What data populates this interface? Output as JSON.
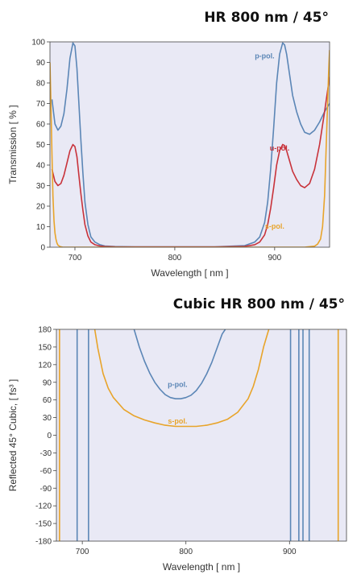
{
  "chart_data": [
    {
      "type": "line",
      "title": "HR 800 nm / 45°",
      "xlabel": "Wavelength [ nm ]",
      "ylabel": "Transmission [ % ]",
      "xlim": [
        675,
        955
      ],
      "ylim": [
        0,
        100
      ],
      "xticks": [
        "700",
        "800",
        "900"
      ],
      "yticks": [
        "0",
        "10",
        "20",
        "30",
        "40",
        "50",
        "60",
        "70",
        "80",
        "90",
        "100"
      ],
      "grid": false,
      "background": "#e9e9f5",
      "series": [
        {
          "name": "p-pol.",
          "color": "#5b86b6",
          "x": [
            677,
            680,
            683,
            686,
            689,
            692,
            695,
            698,
            700,
            702,
            704,
            706,
            708,
            710,
            713,
            716,
            720,
            725,
            730,
            740,
            760,
            800,
            840,
            870,
            880,
            885,
            890,
            893,
            896,
            899,
            902,
            905,
            908,
            910,
            912,
            915,
            918,
            922,
            926,
            930,
            935,
            940,
            945,
            950,
            955
          ],
          "values": [
            72,
            60,
            57,
            59,
            65,
            77,
            92,
            99.5,
            98,
            87,
            70,
            52,
            36,
            22,
            11,
            5,
            2.5,
            1.2,
            0.6,
            0.3,
            0.2,
            0.2,
            0.2,
            0.8,
            2.5,
            5,
            12,
            22,
            38,
            58,
            80,
            94,
            99.5,
            98.5,
            94,
            84,
            74,
            66,
            60,
            56,
            55,
            57,
            61,
            66,
            70
          ]
        },
        {
          "name": "u-pol.",
          "color": "#c8323a",
          "x": [
            677,
            680,
            683,
            686,
            689,
            692,
            695,
            698,
            700,
            702,
            704,
            706,
            708,
            710,
            713,
            716,
            720,
            725,
            730,
            740,
            760,
            800,
            840,
            870,
            880,
            885,
            890,
            893,
            896,
            899,
            902,
            905,
            908,
            910,
            912,
            915,
            918,
            922,
            926,
            930,
            935,
            940,
            945,
            950,
            955
          ],
          "values": [
            38,
            32,
            30,
            31,
            35,
            41,
            47,
            50,
            49,
            44,
            35,
            26,
            18,
            11,
            5.5,
            2.5,
            1.2,
            0.6,
            0.3,
            0.15,
            0.1,
            0.1,
            0.1,
            0.4,
            1.2,
            2.5,
            6,
            11,
            19,
            29,
            40,
            47,
            50,
            49.5,
            47,
            42,
            37,
            33,
            30,
            29,
            31,
            38,
            50,
            66,
            83
          ]
        },
        {
          "name": "s-pol.",
          "color": "#e8a42a",
          "x": [
            675,
            676,
            677,
            678,
            679,
            680,
            681,
            682,
            683,
            685,
            688,
            700,
            800,
            900,
            930,
            940,
            943,
            946,
            948,
            950,
            952,
            954,
            955
          ],
          "values": [
            90,
            70,
            45,
            25,
            13,
            7,
            4,
            2,
            1,
            0.3,
            0,
            0,
            0,
            0,
            0,
            0.5,
            1.5,
            4,
            10,
            25,
            55,
            85,
            96
          ]
        }
      ]
    },
    {
      "type": "line",
      "title": "Cubic HR 800 nm / 45°",
      "xlabel": "Wavelength [ nm ]",
      "ylabel": "Reflected 45° Cubic, [ fs³ ]",
      "xlim": [
        675,
        955
      ],
      "ylim": [
        -180,
        180
      ],
      "xticks": [
        "700",
        "800",
        "900"
      ],
      "yticks": [
        "-180",
        "-150",
        "-120",
        "-90",
        "-60",
        "-30",
        "0",
        "30",
        "60",
        "90",
        "120",
        "150",
        "180"
      ],
      "grid": false,
      "background": "#e9e9f5",
      "series": [
        {
          "name": "p-pol.",
          "color": "#5b86b6",
          "x": [
            750,
            755,
            760,
            765,
            770,
            775,
            780,
            785,
            790,
            795,
            800,
            805,
            810,
            815,
            820,
            825,
            830,
            835,
            838
          ],
          "values": [
            180,
            150,
            126,
            106,
            90,
            78,
            69,
            64,
            62,
            62,
            64,
            68,
            76,
            88,
            104,
            124,
            148,
            172,
            180
          ]
        },
        {
          "name": "s-pol.",
          "color": "#e8a42a",
          "x": [
            712,
            715,
            720,
            725,
            730,
            740,
            750,
            760,
            770,
            780,
            790,
            800,
            810,
            820,
            830,
            840,
            850,
            860,
            865,
            870,
            875,
            880
          ],
          "values": [
            180,
            148,
            105,
            80,
            64,
            44,
            33,
            26,
            21,
            17,
            15,
            15,
            15,
            17,
            21,
            27,
            39,
            62,
            83,
            112,
            150,
            180
          ]
        }
      ],
      "vertical_lines": [
        {
          "color": "#5b86b6",
          "x": [
            695,
            706,
            901,
            909,
            913,
            919
          ]
        },
        {
          "color": "#e8a42a",
          "x": [
            678,
            947
          ]
        }
      ]
    }
  ]
}
